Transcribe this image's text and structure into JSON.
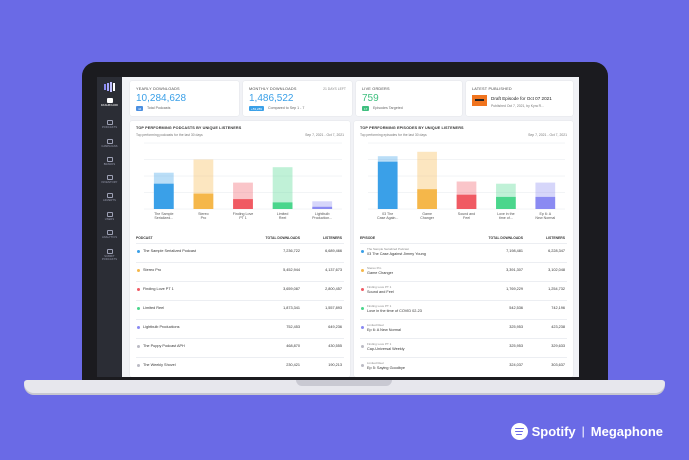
{
  "sidebar": {
    "items": [
      {
        "label": "DASHBOARD"
      },
      {
        "label": "PODCASTS"
      },
      {
        "label": "CAMPAIGNS"
      },
      {
        "label": "BRANDS"
      },
      {
        "label": "INVENTORY"
      },
      {
        "label": "ADVERTS"
      },
      {
        "label": "USERS"
      },
      {
        "label": "ANALYTICS"
      },
      {
        "label": "SUBMIT PODCASTS"
      }
    ]
  },
  "stats": {
    "yearly": {
      "label": "YEARLY DOWNLOADS",
      "value": "10,284,628",
      "badge": "44",
      "sub": "Total Podcasts"
    },
    "monthly": {
      "label": "MONTHLY DOWNLOADS",
      "value": "1,486,522",
      "right": "21 DAYS LEFT",
      "badge": "+53,289",
      "sub": "Compared to Sep 1 - 7"
    },
    "live": {
      "label": "LIVE ORDERS",
      "value": "759",
      "badge": "17",
      "sub": "Episodes Targeted"
    },
    "latest": {
      "label": "LATEST PUBLISHED",
      "title": "Draft Episode for Oct 07 2021",
      "sub": "Published Oct 7, 2021, by Kyra R..."
    }
  },
  "colors": {
    "blue": "#3aa0e8",
    "orange": "#f5b74a",
    "red": "#f05a63",
    "green": "#4ad68c",
    "purple": "#8a8af2",
    "gray": "#bbbbc4"
  },
  "podcasts_panel": {
    "title": "TOP PERFORMING PODCASTS BY UNIQUE LISTENERS",
    "sub": "Top performing podcasts for the last 30 days",
    "range": "Sep 7, 2021 - Oct 7, 2021",
    "col_name": "PODCAST",
    "col_downloads": "TOTAL DOWNLOADS",
    "col_listeners": "LISTENERS",
    "rows": [
      {
        "name": "The Sample Serialized Podcast",
        "downloads": "7,236,722",
        "listeners": "6,689,466",
        "color": "#3aa0e8"
      },
      {
        "name": "Stereo Pro",
        "downloads": "5,452,944",
        "listeners": "4,137,673",
        "color": "#f5b74a"
      },
      {
        "name": "Finding Love PT 1",
        "downloads": "3,659,087",
        "listeners": "2,800,457",
        "color": "#f05a63"
      },
      {
        "name": "Limited Reel",
        "downloads": "1,873,341",
        "listeners": "1,557,893",
        "color": "#4ad68c"
      },
      {
        "name": "Lightbulb Productions",
        "downloads": "752,453",
        "listeners": "649,236",
        "color": "#8a8af2"
      },
      {
        "name": "The Puppy Podcast APH",
        "downloads": "468,870",
        "listeners": "430,555",
        "color": "#bbbbc4"
      },
      {
        "name": "The Weekly Shovel",
        "downloads": "230,421",
        "listeners": "190,213",
        "color": "#bbbbc4"
      }
    ]
  },
  "episodes_panel": {
    "title": "TOP PERFORMING EPISODES BY UNIQUE LISTENERS",
    "sub": "Top performing episodes for the last 30 days",
    "range": "Sep 7, 2021 - Oct 7, 2021",
    "col_name": "EPISODE",
    "col_downloads": "TOTAL DOWNLOADS",
    "col_listeners": "LISTENERS",
    "rows": [
      {
        "show": "The Sample Serialized Podcast",
        "name": "03 The Case Against Jimmy Young",
        "downloads": "7,198,481",
        "listeners": "6,228,347",
        "color": "#3aa0e8"
      },
      {
        "show": "Stereo Pro",
        "name": "Game Changer",
        "downloads": "3,391,307",
        "listeners": "3,102,048",
        "color": "#f5b74a"
      },
      {
        "show": "Finding Love PT 1",
        "name": "Sound and Feel",
        "downloads": "1,769,229",
        "listeners": "1,254,732",
        "color": "#f05a63"
      },
      {
        "show": "Finding Love PT 1",
        "name": "Love in the time of COVID 02-23",
        "downloads": "542,536",
        "listeners": "742,196",
        "color": "#4ad68c"
      },
      {
        "show": "Limited Reel",
        "name": "Ep 6: A New Normal",
        "downloads": "325,953",
        "listeners": "423,238",
        "color": "#8a8af2"
      },
      {
        "show": "Finding Love PT 1",
        "name": "Cap-Universal Weekly",
        "downloads": "325,953",
        "listeners": "329,633",
        "color": "#bbbbc4"
      },
      {
        "show": "Limited Reel",
        "name": "Ep 5: Saying Goodbye",
        "downloads": "324,037",
        "listeners": "303,637",
        "color": "#bbbbc4"
      }
    ]
  },
  "chart_data": [
    {
      "type": "bar",
      "categories": [
        "The Sample Serialized...",
        "Stereo Pro",
        "Finding Love PT 1",
        "Limited Reel",
        "Lightbulb Production..."
      ],
      "series": [
        {
          "values": [
            23,
            14,
            9,
            6,
            2
          ]
        },
        {
          "values": [
            33,
            45,
            24,
            38,
            7
          ]
        }
      ],
      "colors": [
        "#3aa0e8",
        "#f5b74a",
        "#f05a63",
        "#4ad68c",
        "#8a8af2"
      ],
      "ylim": [
        0,
        60
      ],
      "grid": true
    },
    {
      "type": "bar",
      "categories": [
        "03 The Case Again...",
        "Game Changer",
        "Sound and Feel",
        "Love in the time of...",
        "Ep 6: A New Normal"
      ],
      "series": [
        {
          "values": [
            43,
            18,
            13,
            11,
            11
          ]
        },
        {
          "values": [
            48,
            52,
            25,
            23,
            24
          ]
        }
      ],
      "colors": [
        "#3aa0e8",
        "#f5b74a",
        "#f05a63",
        "#4ad68c",
        "#8a8af2"
      ],
      "ylim": [
        0,
        60
      ],
      "grid": true
    }
  ],
  "brand": {
    "spotify": "Spotify",
    "separator": "|",
    "megaphone": "Megaphone"
  }
}
